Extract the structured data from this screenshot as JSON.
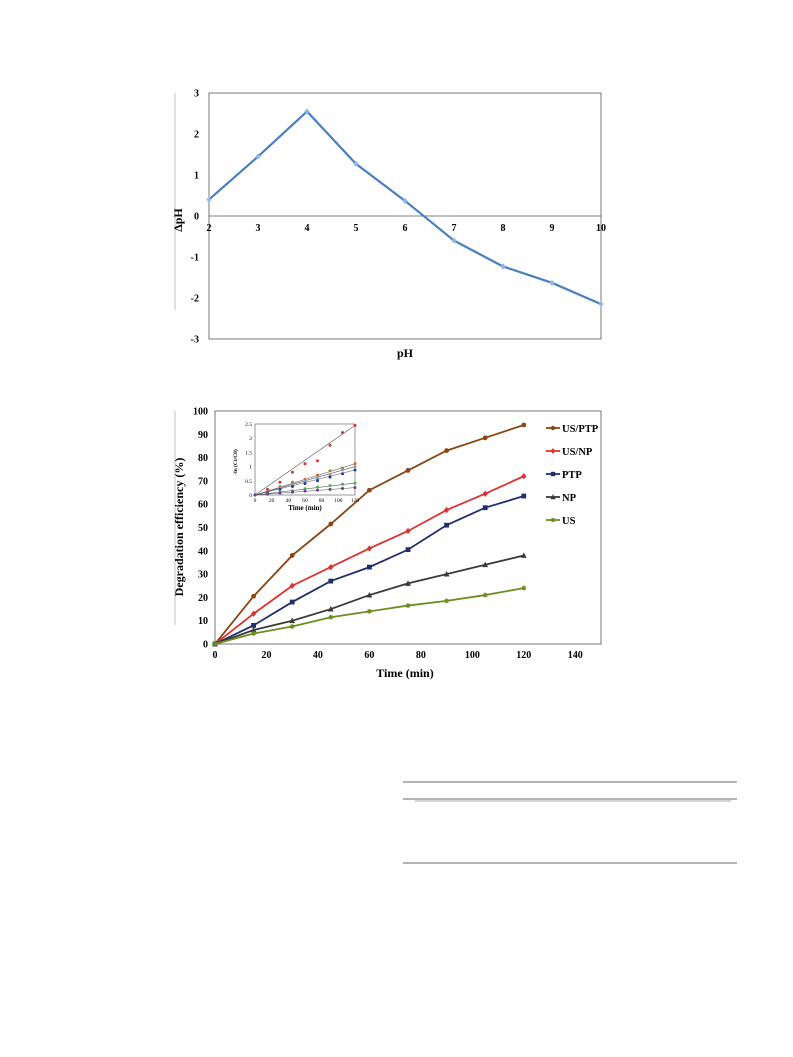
{
  "chart_data": [
    {
      "type": "line",
      "title": "",
      "xlabel": "pH",
      "ylabel": "ΔpH",
      "xlim": [
        2,
        10
      ],
      "ylim": [
        -3,
        3
      ],
      "x_ticks": [
        2,
        3,
        4,
        5,
        6,
        7,
        8,
        9,
        10
      ],
      "y_ticks": [
        3,
        2,
        1,
        0,
        -1,
        -2,
        -3
      ],
      "grid": false,
      "series": [
        {
          "color": "#4a7fbe",
          "marker_color": "#8fb8e6",
          "x": [
            2,
            3,
            4,
            5,
            6,
            7,
            8,
            9,
            10
          ],
          "y": [
            0.4,
            1.45,
            2.55,
            1.27,
            0.37,
            -0.6,
            -1.23,
            -1.63,
            -2.15
          ]
        }
      ]
    },
    {
      "type": "line",
      "title": "",
      "xlabel": "Time (min)",
      "ylabel": "Degradation efficiency (%)",
      "xlim": [
        0,
        150
      ],
      "ylim": [
        0,
        100
      ],
      "x_ticks": [
        0,
        20,
        40,
        60,
        80,
        100,
        120,
        140
      ],
      "y_ticks": [
        0,
        10,
        20,
        30,
        40,
        50,
        60,
        70,
        80,
        90,
        100
      ],
      "grid": false,
      "legend_position": "right",
      "series": [
        {
          "name": "US/PTP",
          "color": "#8b4513",
          "marker": "circle",
          "x": [
            0,
            15,
            30,
            45,
            60,
            75,
            90,
            105,
            120
          ],
          "y": [
            0,
            20.5,
            38,
            51.5,
            66,
            74.5,
            83,
            88.5,
            94
          ]
        },
        {
          "name": "US/NP",
          "color": "#e03030",
          "marker": "diamond",
          "x": [
            0,
            15,
            30,
            45,
            60,
            75,
            90,
            105,
            120
          ],
          "y": [
            0,
            13,
            25,
            33,
            41,
            48.5,
            57.5,
            64.5,
            72
          ]
        },
        {
          "name": "PTP",
          "color": "#1f2f6b",
          "marker": "square",
          "x": [
            0,
            15,
            30,
            45,
            60,
            75,
            90,
            105,
            120
          ],
          "y": [
            0,
            8,
            18,
            27,
            33,
            40.5,
            51,
            58.5,
            63.5
          ]
        },
        {
          "name": "NP",
          "color": "#3a3a3a",
          "marker": "triangle",
          "x": [
            0,
            15,
            30,
            45,
            60,
            75,
            90,
            105,
            120
          ],
          "y": [
            0,
            6,
            10,
            15,
            21,
            26,
            30,
            34,
            38
          ]
        },
        {
          "name": "US",
          "color": "#6b8e23",
          "marker": "star",
          "x": [
            0,
            15,
            30,
            45,
            60,
            75,
            90,
            105,
            120
          ],
          "y": [
            0,
            4.5,
            7.5,
            11.5,
            14,
            16.5,
            18.5,
            21,
            24
          ]
        }
      ],
      "inset": {
        "type": "line",
        "xlabel": "Time (min)",
        "ylabel": "-ln (Ct/C0)",
        "xlim": [
          0,
          120
        ],
        "ylim": [
          0,
          2.5
        ],
        "x_ticks": [
          0,
          20,
          40,
          60,
          80,
          100,
          120
        ],
        "y_ticks": [
          0,
          0.5,
          1,
          1.5,
          2,
          2.5
        ],
        "series": [
          {
            "color": "#e03030",
            "x": [
              0,
              15,
              30,
              45,
              60,
              75,
              90,
              105,
              120
            ],
            "y": [
              0,
              0.2,
              0.45,
              0.8,
              1.1,
              1.2,
              1.75,
              2.2,
              2.45
            ]
          },
          {
            "color": "#d2691e",
            "x": [
              0,
              15,
              30,
              45,
              60,
              75,
              90,
              105,
              120
            ],
            "y": [
              0,
              0.1,
              0.3,
              0.45,
              0.55,
              0.7,
              0.85,
              0.95,
              1.1
            ]
          },
          {
            "color": "#7f9fd0",
            "x": [
              0,
              15,
              30,
              45,
              60,
              75,
              90,
              105,
              120
            ],
            "y": [
              0,
              0.1,
              0.25,
              0.38,
              0.48,
              0.6,
              0.72,
              0.88,
              1.0
            ]
          },
          {
            "color": "#1f3f9f",
            "x": [
              0,
              15,
              30,
              45,
              60,
              75,
              90,
              105,
              120
            ],
            "y": [
              0,
              0.08,
              0.2,
              0.3,
              0.4,
              0.5,
              0.63,
              0.75,
              0.88
            ]
          },
          {
            "color": "#4caf50",
            "x": [
              0,
              15,
              30,
              45,
              60,
              75,
              90,
              105,
              120
            ],
            "y": [
              0,
              0.05,
              0.1,
              0.15,
              0.22,
              0.28,
              0.33,
              0.38,
              0.42
            ]
          },
          {
            "color": "#6a3d9a",
            "x": [
              0,
              15,
              30,
              45,
              60,
              75,
              90,
              105,
              120
            ],
            "y": [
              0,
              0.03,
              0.07,
              0.1,
              0.14,
              0.17,
              0.2,
              0.23,
              0.26
            ]
          }
        ]
      }
    }
  ]
}
